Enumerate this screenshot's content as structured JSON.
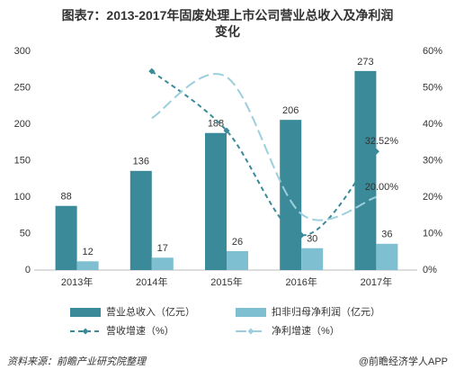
{
  "chart_data": {
    "type": "bar",
    "title": "图表7：2013-2017年固废处理上市公司营业总收入及净利润变化",
    "categories": [
      "2013年",
      "2014年",
      "2015年",
      "2016年",
      "2017年"
    ],
    "series": [
      {
        "name": "营业总收入（亿元）",
        "type": "bar",
        "color": "#3a8a99",
        "values": [
          88,
          136,
          188,
          206,
          273
        ]
      },
      {
        "name": "扣非归母净利润（亿元）",
        "type": "bar",
        "color": "#7fbfd2",
        "values": [
          12,
          17,
          26,
          30,
          36
        ]
      },
      {
        "name": "营收增速（%）",
        "type": "line",
        "axis": "y2",
        "color": "#3a8a99",
        "dash": "5,4",
        "marker": true,
        "values": [
          null,
          54.55,
          38.24,
          9.57,
          32.52
        ],
        "value_labels": [
          null,
          null,
          null,
          null,
          "32.52%"
        ]
      },
      {
        "name": "净利增速（%）",
        "type": "line",
        "axis": "y2",
        "color": "#9ccfdd",
        "dash": "12,5",
        "marker": false,
        "values": [
          null,
          41.67,
          52.94,
          15.38,
          20.0
        ],
        "value_labels": [
          null,
          null,
          null,
          null,
          "20.00%"
        ]
      }
    ],
    "ylim": [
      0,
      300
    ],
    "yticks": [
      0,
      50,
      100,
      150,
      200,
      250,
      300
    ],
    "y2lim": [
      0,
      60
    ],
    "y2ticks": [
      {
        "value": 0,
        "label": "0%"
      },
      {
        "value": 10,
        "label": "10%"
      },
      {
        "value": 20,
        "label": "20%"
      },
      {
        "value": 30,
        "label": "30%"
      },
      {
        "value": 40,
        "label": "40%"
      },
      {
        "value": 50,
        "label": "50%"
      },
      {
        "value": 60,
        "label": "60%"
      }
    ],
    "grid": false,
    "source": "资料来源：前瞻产业研究院整理",
    "credit": "@前瞻经济学人APP"
  }
}
